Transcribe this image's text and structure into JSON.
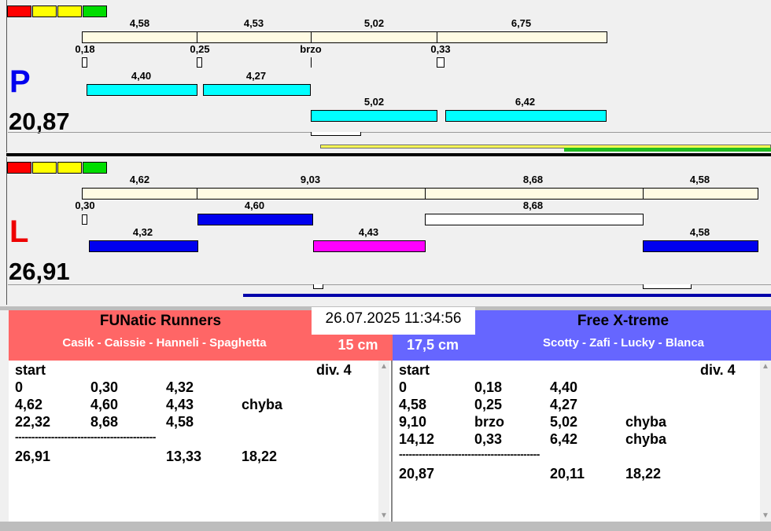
{
  "top": {
    "side": "P",
    "total": "20,87",
    "row1_labels": [
      "4,58",
      "4,53",
      "5,02",
      "6,75"
    ],
    "row2_labels": [
      "0,18",
      "0,25",
      "brzo",
      "0,33"
    ],
    "row3_labels": [
      "4,40",
      "4,27"
    ],
    "row4_labels": [
      "5,02",
      "6,42"
    ]
  },
  "bottom": {
    "side": "L",
    "total": "26,91",
    "row1_labels": [
      "4,62",
      "9,03",
      "8,68",
      "4,58"
    ],
    "row2_labels": [
      "0,30",
      "4,60",
      "8,68"
    ],
    "row3_labels": [
      "4,32",
      "4,43",
      "4,58"
    ]
  },
  "timestamp": "26.07.2025 11:34:56",
  "left_team": {
    "name": "FUNatic Runners",
    "members": "Casik - Caissie - Hanneli - Spaghetta",
    "height": "15 cm",
    "start_label": "start",
    "division": "div.  4",
    "rows": [
      [
        "0",
        "0,30",
        "4,32",
        ""
      ],
      [
        "4,62",
        "4,60",
        "4,43",
        "chyba"
      ],
      [
        "22,32",
        "8,68",
        "4,58",
        ""
      ]
    ],
    "separator": "-------------------------------------------",
    "totals": [
      "26,91",
      "",
      "13,33",
      "18,22"
    ]
  },
  "right_team": {
    "name": "Free X-treme",
    "members": "Scotty - Zafi - Lucky - Blanca",
    "height": "17,5 cm",
    "start_label": "start",
    "division": "div.  4",
    "rows": [
      [
        "0",
        "0,18",
        "4,40",
        ""
      ],
      [
        "4,58",
        "0,25",
        "4,27",
        ""
      ],
      [
        "9,10",
        "brzo",
        "5,02",
        "chyba"
      ],
      [
        "14,12",
        "0,33",
        "6,42",
        "chyba"
      ]
    ],
    "separator": "-------------------------------------------",
    "totals": [
      "20,87",
      "",
      "20,11",
      "18,22"
    ]
  },
  "colors": {
    "cream": "#fffbe3",
    "cyan": "#00ffff",
    "blue": "#0000ee",
    "magenta": "#ff00ff",
    "left_header": "#ff6666",
    "right_header": "#6666ff",
    "progress_green": "#22bb22",
    "progress_yellow": "#ffff55",
    "progress_blue": "#0000aa"
  }
}
